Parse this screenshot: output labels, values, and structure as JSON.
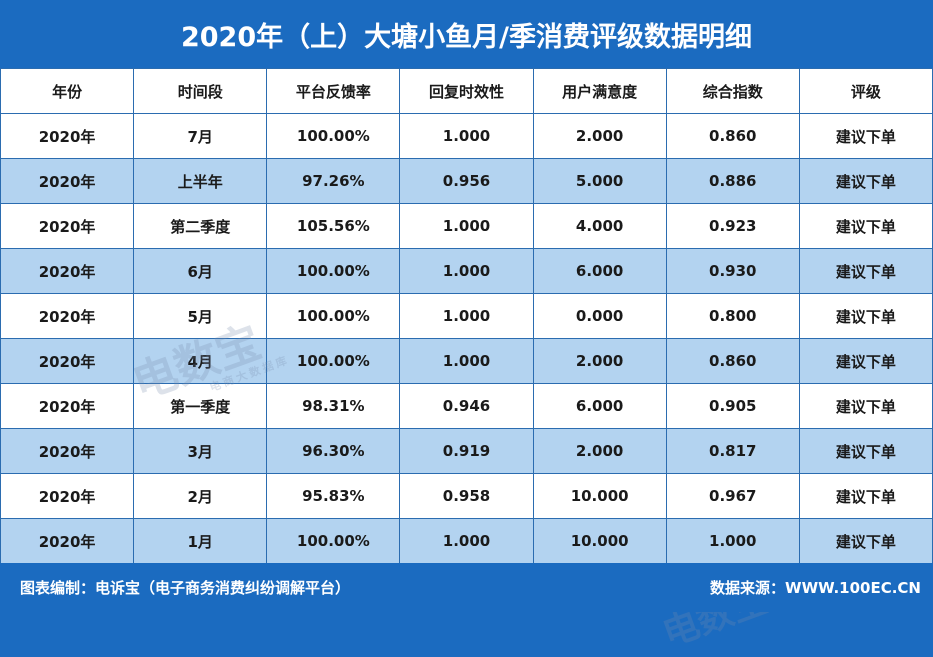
{
  "title": "2020年（上）大塘小鱼月/季消费评级数据明细",
  "table": {
    "headers": [
      "年份",
      "时间段",
      "平台反馈率",
      "回复时效性",
      "用户满意度",
      "综合指数",
      "评级"
    ],
    "rows": [
      [
        "2020年",
        "7月",
        "100.00%",
        "1.000",
        "2.000",
        "0.860",
        "建议下单"
      ],
      [
        "2020年",
        "上半年",
        "97.26%",
        "0.956",
        "5.000",
        "0.886",
        "建议下单"
      ],
      [
        "2020年",
        "第二季度",
        "105.56%",
        "1.000",
        "4.000",
        "0.923",
        "建议下单"
      ],
      [
        "2020年",
        "6月",
        "100.00%",
        "1.000",
        "6.000",
        "0.930",
        "建议下单"
      ],
      [
        "2020年",
        "5月",
        "100.00%",
        "1.000",
        "0.000",
        "0.800",
        "建议下单"
      ],
      [
        "2020年",
        "4月",
        "100.00%",
        "1.000",
        "2.000",
        "0.860",
        "建议下单"
      ],
      [
        "2020年",
        "第一季度",
        "98.31%",
        "0.946",
        "6.000",
        "0.905",
        "建议下单"
      ],
      [
        "2020年",
        "3月",
        "96.30%",
        "0.919",
        "2.000",
        "0.817",
        "建议下单"
      ],
      [
        "2020年",
        "2月",
        "95.83%",
        "0.958",
        "10.000",
        "0.967",
        "建议下单"
      ],
      [
        "2020年",
        "1月",
        "100.00%",
        "1.000",
        "10.000",
        "1.000",
        "建议下单"
      ]
    ]
  },
  "footer": {
    "left": "图表编制：电诉宝（电子商务消费纠纷调解平台）",
    "right": "数据来源：WWW.100EC.CN"
  },
  "watermark": {
    "logo": "电数宝",
    "tagline": "电商大数据库"
  },
  "colors": {
    "header_blue": "#1b6bc0",
    "row_alt": "#b3d3f0",
    "grid": "#2b6cb0"
  }
}
